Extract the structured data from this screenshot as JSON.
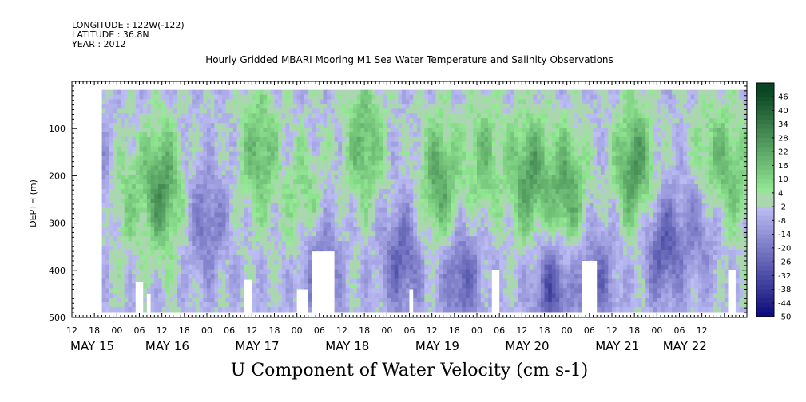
{
  "header": {
    "longitude": "LONGITUDE : 122W(-122)",
    "latitude": "LATITUDE : 36.8N",
    "year": "YEAR : 2012"
  },
  "chart_data": {
    "type": "heatmap",
    "title": "Hourly Gridded MBARI Mooring M1 Sea Water Temperature and Salinity Observations",
    "bottom_title": "U Component of Water Velocity (cm s-1)",
    "ylabel": "DEPTH (m)",
    "xlabel": "",
    "ylim": [
      500,
      0
    ],
    "y_ticks": [
      "100",
      "200",
      "300",
      "400",
      "500"
    ],
    "y_tick_values": [
      100,
      200,
      300,
      400,
      500
    ],
    "x_start_hour": 0,
    "x_end_hour": 180,
    "hour_ticks": [
      "12",
      "18",
      "00",
      "06",
      "12",
      "18",
      "00",
      "06",
      "12",
      "18",
      "00",
      "06",
      "12",
      "18",
      "00",
      "06",
      "12",
      "18",
      "00",
      "06",
      "12",
      "18",
      "00",
      "06",
      "12",
      "18",
      "00",
      "06",
      "12"
    ],
    "date_labels": [
      {
        "label": "MAY 15",
        "hour": 0
      },
      {
        "label": "MAY 16",
        "hour": 20
      },
      {
        "label": "MAY 17",
        "hour": 44
      },
      {
        "label": "MAY 18",
        "hour": 68
      },
      {
        "label": "MAY 19",
        "hour": 92
      },
      {
        "label": "MAY 20",
        "hour": 116
      },
      {
        "label": "MAY 21",
        "hour": 140
      },
      {
        "label": "MAY 22",
        "hour": 158
      }
    ],
    "data_x_range": [
      8,
      180
    ],
    "data_depth_range": [
      18,
      480
    ],
    "colorbar": {
      "labels": [
        "46",
        "40",
        "34",
        "28",
        "22",
        "16",
        "10",
        "4",
        "-2",
        "-8",
        "-14",
        "-20",
        "-26",
        "-32",
        "-38",
        "-44",
        "-50"
      ],
      "values": [
        46,
        40,
        34,
        28,
        22,
        16,
        10,
        4,
        -2,
        -8,
        -14,
        -20,
        -26,
        -32,
        -38,
        -44,
        -50
      ],
      "range": [
        -50,
        52
      ]
    },
    "green_bands": [
      {
        "hour": 24,
        "depth": 230,
        "strength": 30
      },
      {
        "hour": 14,
        "depth": 240,
        "strength": 14
      },
      {
        "hour": 50,
        "depth": 150,
        "strength": 22
      },
      {
        "hour": 62,
        "depth": 250,
        "strength": 14
      },
      {
        "hour": 78,
        "depth": 130,
        "strength": 22
      },
      {
        "hour": 98,
        "depth": 210,
        "strength": 26
      },
      {
        "hour": 110,
        "depth": 160,
        "strength": 18
      },
      {
        "hour": 122,
        "depth": 200,
        "strength": 28
      },
      {
        "hour": 132,
        "depth": 230,
        "strength": 26
      },
      {
        "hour": 150,
        "depth": 180,
        "strength": 30
      },
      {
        "hour": 170,
        "depth": 160,
        "strength": 14
      },
      {
        "hour": 176,
        "depth": 200,
        "strength": 16
      }
    ],
    "blue_bands": [
      {
        "hour": 8,
        "depth": 200,
        "strength": 10
      },
      {
        "hour": 36,
        "depth": 300,
        "strength": 16
      },
      {
        "hour": 66,
        "depth": 400,
        "strength": 20
      },
      {
        "hour": 88,
        "depth": 380,
        "strength": 22
      },
      {
        "hour": 104,
        "depth": 420,
        "strength": 22
      },
      {
        "hour": 128,
        "depth": 440,
        "strength": 26
      },
      {
        "hour": 140,
        "depth": 420,
        "strength": 18
      },
      {
        "hour": 158,
        "depth": 350,
        "strength": 24
      },
      {
        "hour": 168,
        "depth": 300,
        "strength": 14
      }
    ],
    "missing_blocks": [
      {
        "hour0": 17,
        "hour1": 19,
        "depth0": 425,
        "depth1": 500
      },
      {
        "hour0": 20,
        "hour1": 21,
        "depth0": 450,
        "depth1": 500
      },
      {
        "hour0": 46,
        "hour1": 48,
        "depth0": 420,
        "depth1": 500
      },
      {
        "hour0": 60,
        "hour1": 63,
        "depth0": 440,
        "depth1": 500
      },
      {
        "hour0": 64,
        "hour1": 70,
        "depth0": 360,
        "depth1": 500
      },
      {
        "hour0": 90,
        "hour1": 91,
        "depth0": 440,
        "depth1": 500
      },
      {
        "hour0": 112,
        "hour1": 114,
        "depth0": 400,
        "depth1": 500
      },
      {
        "hour0": 136,
        "hour1": 140,
        "depth0": 380,
        "depth1": 500
      },
      {
        "hour0": 175,
        "hour1": 177,
        "depth0": 400,
        "depth1": 500
      }
    ]
  }
}
